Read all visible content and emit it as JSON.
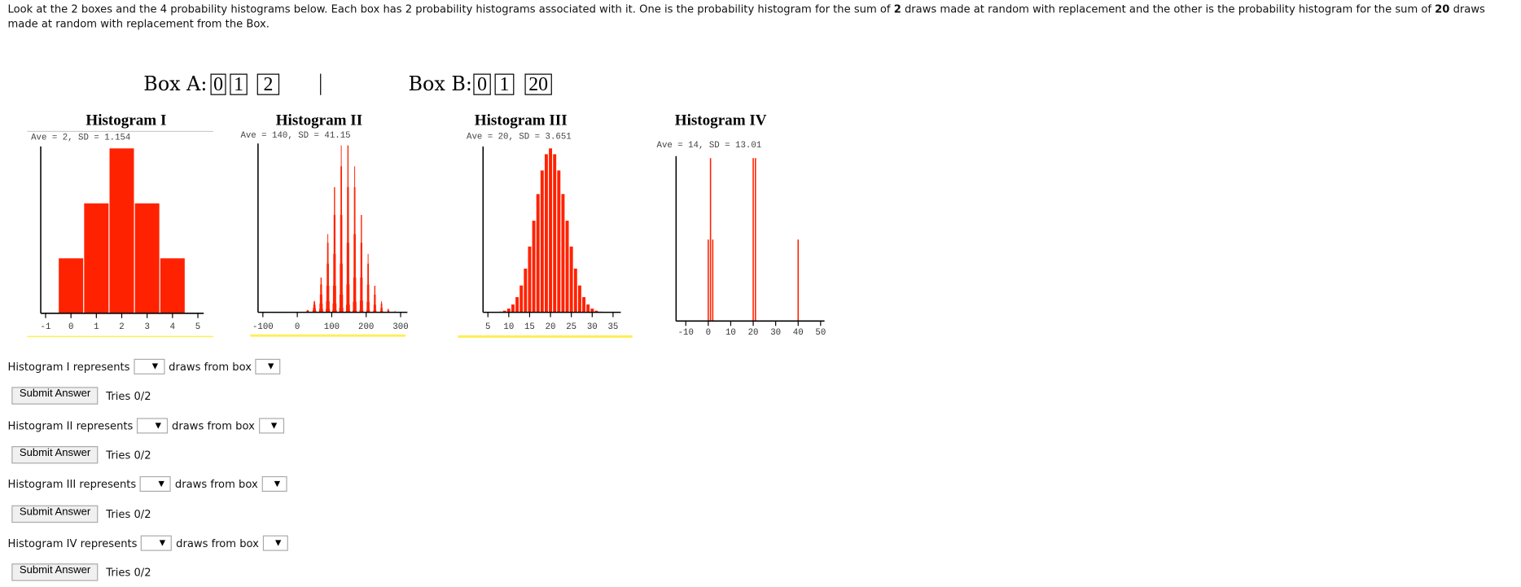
{
  "instructions": {
    "part1": "Look at the 2 boxes and the 4 probability histograms below. Each box has 2 probability histograms associated with it. One is the probability histogram for the sum of ",
    "bold1": "2",
    "part2": " draws made at random with replacement and the other is the probability histogram for the sum of ",
    "bold2": "20",
    "part3": " draws made at random with replacement from the Box."
  },
  "boxes": [
    {
      "label": "Box A:",
      "tickets": [
        "0",
        "1",
        "2"
      ]
    },
    {
      "label": "Box B:",
      "tickets": [
        "0",
        "1",
        "20"
      ]
    }
  ],
  "chart_data": [
    {
      "type": "bar",
      "title": "Histogram I",
      "subtitle": "Ave = 2, SD = 1.154",
      "x": [
        0,
        1,
        2,
        3,
        4
      ],
      "values": [
        0.1111,
        0.2222,
        0.3333,
        0.2222,
        0.1111
      ],
      "xticks": [
        -1,
        0,
        1,
        2,
        3,
        4,
        5
      ]
    },
    {
      "type": "bar",
      "title": "Histogram II",
      "subtitle": "Ave = 140, SD = 41.15",
      "box": [
        0,
        1,
        20
      ],
      "draws": 20,
      "xticks": [
        -100,
        0,
        100,
        200,
        300
      ]
    },
    {
      "type": "bar",
      "title": "Histogram III",
      "subtitle": "Ave = 20, SD = 3.651",
      "box": [
        0,
        1,
        2
      ],
      "draws": 20,
      "xticks": [
        5,
        10,
        15,
        20,
        25,
        30,
        35
      ]
    },
    {
      "type": "bar",
      "title": "Histogram IV",
      "subtitle": "Ave = 14, SD = 13.01",
      "x": [
        0,
        1,
        2,
        20,
        21,
        40
      ],
      "values": [
        0.1111,
        0.2222,
        0.1111,
        0.2222,
        0.2222,
        0.1111
      ],
      "xticks": [
        -10,
        0,
        10,
        20,
        30,
        40,
        50
      ]
    }
  ],
  "colors": {
    "bar": "#ff2200",
    "underline": "#ffee55"
  },
  "questions": [
    {
      "label": "Histogram I represents",
      "mid": "draws from box",
      "submit": "Submit Answer",
      "tries": "Tries 0/2"
    },
    {
      "label": "Histogram II represents",
      "mid": "draws from box",
      "submit": "Submit Answer",
      "tries": "Tries 0/2"
    },
    {
      "label": "Histogram III represents",
      "mid": "draws from box",
      "submit": "Submit Answer",
      "tries": "Tries 0/2"
    },
    {
      "label": "Histogram IV represents",
      "mid": "draws from box",
      "submit": "Submit Answer",
      "tries": "Tries 0/2"
    }
  ]
}
